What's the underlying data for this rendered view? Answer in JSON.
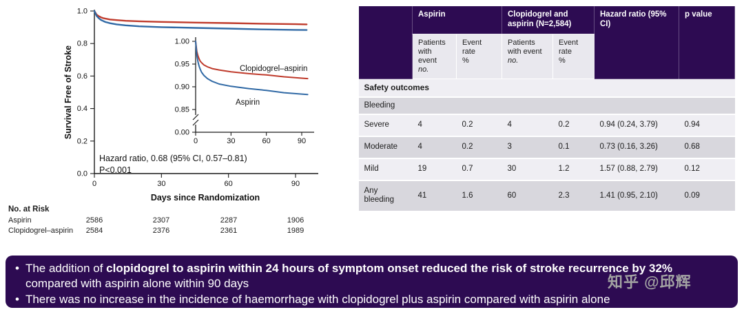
{
  "watermark": "知乎 @邱辉",
  "banner": {
    "bullet_char": "•",
    "bullets": [
      {
        "pre": "The addition of ",
        "bold": "clopidogrel to aspirin within 24 hours of symptom onset reduced the risk of stroke recurrence by 32%",
        "post": " compared with aspirin alone within 90 days"
      },
      {
        "pre": "",
        "bold": "",
        "post": "There was no increase in the incidence of haemorrhage with clopidogrel plus aspirin compared with aspirin alone"
      }
    ]
  },
  "chart_data": [
    {
      "type": "line",
      "title": "",
      "xlabel": "Days since Randomization",
      "ylabel": "Survival Free of Stroke",
      "xlim": [
        0,
        97
      ],
      "ylim": [
        0.0,
        1.0
      ],
      "xticks": [
        0,
        30,
        60,
        90
      ],
      "yticks": [
        1.0,
        0.8,
        0.6,
        0.4,
        0.2,
        0.0
      ],
      "ytick_labels": [
        "1.0",
        "0.8",
        "0.6",
        "0.4",
        "0.2",
        "0.0"
      ],
      "grid": false,
      "annotations": [
        "Hazard ratio, 0.68 (95% CI, 0.57–0.81)",
        "P<0.001"
      ],
      "series": [
        {
          "name": "Clopidogrel–aspirin",
          "color": "#bf3a2b",
          "x": [
            0,
            1,
            2,
            3,
            4,
            5,
            7,
            10,
            14,
            20,
            30,
            45,
            60,
            75,
            90,
            95
          ],
          "y": [
            1.0,
            0.978,
            0.968,
            0.961,
            0.956,
            0.953,
            0.948,
            0.944,
            0.94,
            0.937,
            0.933,
            0.929,
            0.926,
            0.922,
            0.919,
            0.918
          ]
        },
        {
          "name": "Aspirin",
          "color": "#3069a5",
          "x": [
            0,
            1,
            2,
            3,
            4,
            5,
            7,
            10,
            14,
            20,
            30,
            45,
            60,
            75,
            90,
            95
          ],
          "y": [
            1.0,
            0.97,
            0.955,
            0.945,
            0.938,
            0.932,
            0.925,
            0.918,
            0.912,
            0.906,
            0.901,
            0.896,
            0.892,
            0.887,
            0.884,
            0.883
          ]
        }
      ],
      "no_at_risk": {
        "title": "No. at Risk",
        "rows": [
          {
            "label": "Aspirin",
            "values": [
              "2586",
              "2307",
              "2287",
              "1906"
            ]
          },
          {
            "label": "Clopidogrel–aspirin",
            "values": [
              "2584",
              "2376",
              "2361",
              "1989"
            ]
          }
        ]
      }
    },
    {
      "type": "line",
      "title": "",
      "note": "Inset with magnified y-axis showing the same two series as the main chart",
      "xticks": [
        0,
        30,
        60,
        90
      ],
      "yticks": [
        1.0,
        0.95,
        0.9,
        0.85
      ],
      "ytick_labels": [
        "1.00",
        "0.95",
        "0.90",
        "0.85"
      ],
      "baseline_label": "0.00",
      "ylim": [
        0.85,
        1.0
      ]
    },
    {
      "type": "table",
      "header": {
        "group_cols": [
          "Aspirin",
          "Clopidogrel and aspirin (N=2,584)"
        ],
        "subheaders": [
          {
            "text": "Patients with event",
            "unit": "no."
          },
          {
            "text": "Event rate",
            "unit": "%"
          },
          {
            "text": "Patients with event",
            "unit": "no."
          },
          {
            "text": "Event rate",
            "unit": "%"
          }
        ],
        "hazard": "Hazard ratio (95% CI)",
        "pvalue": "p value"
      },
      "section": "Safety outcomes",
      "subsection": "Bleeding",
      "rows": [
        {
          "cells": [
            "Severe",
            "4",
            "0.2",
            "4",
            "0.2",
            "0.94 (0.24, 3.79)",
            "0.94"
          ]
        },
        {
          "cells": [
            "Moderate",
            "4",
            "0.2",
            "3",
            "0.1",
            "0.73 (0.16, 3.26)",
            "0.68"
          ]
        },
        {
          "cells": [
            "Mild",
            "19",
            "0.7",
            "30",
            "1.2",
            "1.57 (0.88, 2.79)",
            "0.12"
          ]
        },
        {
          "cells": [
            "Any bleeding",
            "41",
            "1.6",
            "60",
            "2.3",
            "1.41 (0.95, 2.10)",
            "0.09"
          ]
        }
      ]
    }
  ]
}
